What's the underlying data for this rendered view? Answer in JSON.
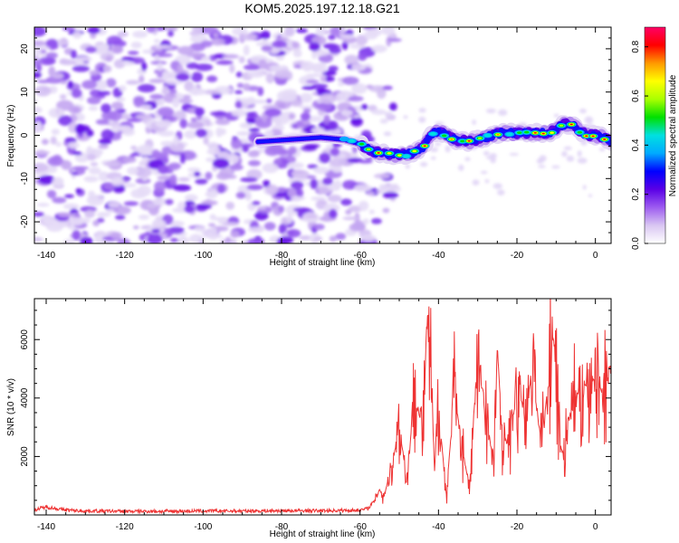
{
  "title": "KOM5.2025.197.12.18.G21",
  "chart_data": [
    {
      "type": "heatmap",
      "xlabel": "Height of straight line (km)",
      "ylabel": "Frequency (Hz)",
      "xlim": [
        -143,
        4
      ],
      "ylim": [
        -25,
        25
      ],
      "x_ticks": [
        -140,
        -120,
        -100,
        -80,
        -60,
        -40,
        -20,
        0
      ],
      "y_ticks": [
        -20,
        -10,
        0,
        10,
        20
      ],
      "colorbar": {
        "label": "Normalized spectral amplitude",
        "range": [
          0,
          0.88
        ],
        "ticks": [
          "0.0",
          "0.2",
          "0.4",
          "0.6",
          "0.8"
        ],
        "colors": [
          "#ffffff",
          "#d9c6f2",
          "#9d5cf0",
          "#5a00e6",
          "#0000ff",
          "#00aaff",
          "#00e0e0",
          "#00e000",
          "#aaff00",
          "#ffff00",
          "#ff9900",
          "#ff0000",
          "#ff0066"
        ]
      },
      "noise_region_x": [
        -143,
        -57
      ],
      "signal_ridge": {
        "x": [
          -86,
          -78,
          -70,
          -64,
          -60,
          -56,
          -52,
          -48,
          -44,
          -42,
          -40,
          -36,
          -32,
          -28,
          -24,
          -20,
          -16,
          -12,
          -8,
          -6,
          -4,
          -2,
          0,
          2,
          4
        ],
        "frequency": [
          -1.5,
          -1,
          -0.5,
          -1,
          -2,
          -4,
          -4.5,
          -4.5,
          -3,
          0,
          1,
          -1,
          -1.5,
          -0.5,
          0.5,
          0.5,
          0.5,
          0.5,
          2.5,
          2.5,
          1,
          0,
          0,
          -0.5,
          -1.5
        ]
      }
    },
    {
      "type": "line",
      "xlabel": "Height of straight line (km)",
      "ylabel": "SNR (10 * v/v)",
      "xlim": [
        -143,
        4
      ],
      "ylim": [
        0,
        7400
      ],
      "x_ticks": [
        -140,
        -120,
        -100,
        -80,
        -60,
        -40,
        -20,
        0
      ],
      "y_ticks": [
        2000,
        4000,
        6000
      ],
      "line_color": "#ee3333",
      "series": [
        {
          "x": [
            -143,
            -140,
            -136,
            -132,
            -128,
            -120,
            -110,
            -100,
            -90,
            -80,
            -70,
            -64,
            -60,
            -58,
            -56,
            -55,
            -54,
            -52,
            -50,
            -48,
            -46,
            -44,
            -43,
            -42,
            -41,
            -40,
            -38,
            -36,
            -34,
            -32,
            -31,
            -30,
            -28,
            -26,
            -25,
            -24,
            -22,
            -20,
            -18,
            -16,
            -14,
            -12,
            -11,
            -10,
            -9,
            -8,
            -7,
            -6,
            -4,
            -2,
            0,
            2,
            4
          ],
          "y": [
            150,
            250,
            160,
            120,
            110,
            100,
            100,
            110,
            110,
            120,
            120,
            130,
            140,
            200,
            500,
            900,
            600,
            1600,
            3000,
            1200,
            4400,
            2600,
            6600,
            5000,
            1500,
            3800,
            600,
            4200,
            2400,
            800,
            3500,
            4900,
            3900,
            1500,
            5800,
            3000,
            2300,
            4300,
            3600,
            4900,
            2600,
            4300,
            6400,
            5200,
            2400,
            2000,
            3000,
            3800,
            4300,
            4500,
            4700,
            4100,
            5300
          ]
        }
      ]
    }
  ]
}
